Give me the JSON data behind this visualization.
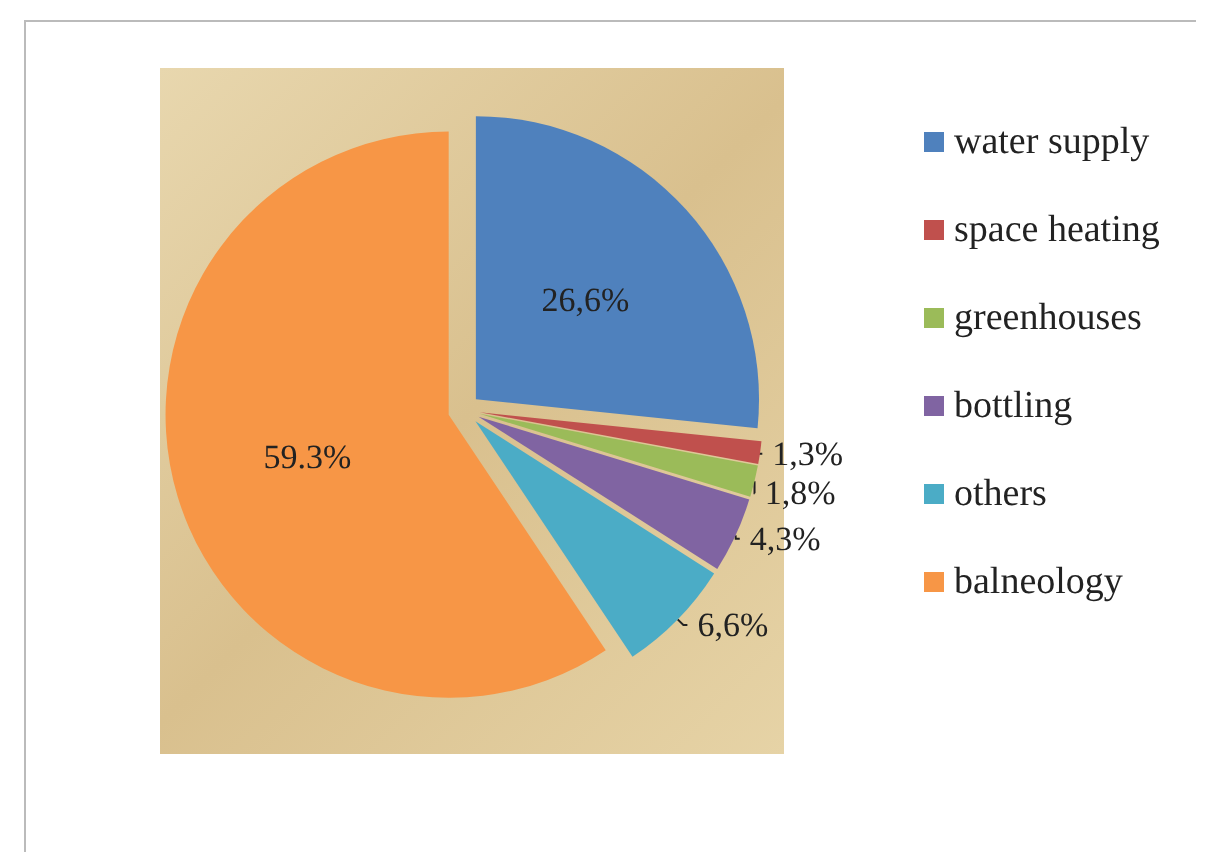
{
  "chart_data": {
    "type": "pie",
    "categories": [
      "water supply",
      "space heating",
      "greenhouses",
      "bottling",
      "others",
      "balneology"
    ],
    "values": [
      26.6,
      1.3,
      1.8,
      4.3,
      6.6,
      59.3
    ],
    "value_labels": [
      "26,6%",
      "1,3%",
      "1,8%",
      "4,3%",
      "6,6%",
      "59.3%"
    ],
    "colors": [
      "#4f81bd",
      "#c0504d",
      "#9bbb59",
      "#8064a2",
      "#4bacc6",
      "#f79646"
    ],
    "legend": "right"
  }
}
